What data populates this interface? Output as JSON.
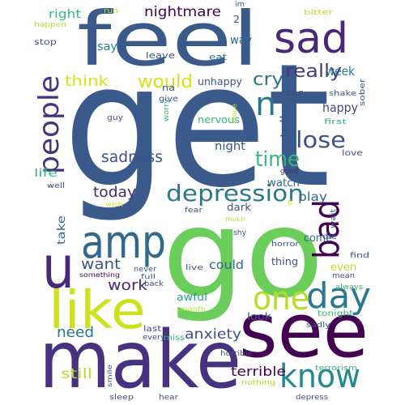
{
  "word_cloud": {
    "colors": {
      "dark_purple": "#440154",
      "indigo": "#482878",
      "blue_purple": "#3e4989",
      "slate_blue": "#31688e",
      "teal_blue": "#26828e",
      "teal": "#1f9e89",
      "green": "#35b779",
      "light_green": "#6ece58",
      "lime": "#b5de2b",
      "yellow": "#fde725"
    },
    "words": [
      {
        "text": "get",
        "color": "#3b5a8c"
      },
      {
        "text": "go",
        "color": "#6bcd5a"
      },
      {
        "text": "feel",
        "color": "#3b5a8c"
      },
      {
        "text": "make",
        "color": "#46327e"
      },
      {
        "text": "see",
        "color": "#440154"
      },
      {
        "text": "like",
        "color": "#cde11d"
      },
      {
        "text": "amp",
        "color": "#31688e"
      },
      {
        "text": "u",
        "color": "#482878"
      },
      {
        "text": "sad",
        "color": "#482878"
      },
      {
        "text": "day",
        "color": "#2a788e"
      },
      {
        "text": "know",
        "color": "#23898e"
      },
      {
        "text": "one",
        "color": "#b5de2b"
      },
      {
        "text": "bad",
        "color": "#440154"
      },
      {
        "text": "n",
        "color": "#2a788e"
      },
      {
        "text": "people",
        "color": "#46327e"
      },
      {
        "text": "depression",
        "color": "#2a788e"
      },
      {
        "text": "lose",
        "color": "#3b528b"
      },
      {
        "text": "time",
        "color": "#35b779"
      },
      {
        "text": "really",
        "color": "#453781"
      },
      {
        "text": "cry",
        "color": "#2a788e"
      },
      {
        "text": "would",
        "color": "#d8e219"
      },
      {
        "text": "nightmare",
        "color": "#440154"
      },
      {
        "text": "think",
        "color": "#d8e219"
      },
      {
        "text": "sadness",
        "color": "#3b528b"
      },
      {
        "text": "today",
        "color": "#482878"
      },
      {
        "text": "want",
        "color": "#3b528b"
      },
      {
        "text": "work",
        "color": "#482878"
      },
      {
        "text": "need",
        "color": "#2a788e"
      },
      {
        "text": "anxiety",
        "color": "#3b528b"
      },
      {
        "text": "terrible",
        "color": "#440154"
      },
      {
        "text": "still",
        "color": "#b5de2b"
      },
      {
        "text": "could",
        "color": "#31688e"
      },
      {
        "text": "play",
        "color": "#31688e"
      },
      {
        "text": "week",
        "color": "#2a788e"
      },
      {
        "text": "happy",
        "color": "#3e4989"
      },
      {
        "text": "right",
        "color": "#35b779"
      },
      {
        "text": "say",
        "color": "#26828e"
      },
      {
        "text": "way",
        "color": "#31688e"
      },
      {
        "text": "life",
        "color": "#35b779"
      },
      {
        "text": "night",
        "color": "#3b528b"
      },
      {
        "text": "watch",
        "color": "#31688e"
      },
      {
        "text": "take",
        "color": "#31688e"
      },
      {
        "text": "come",
        "color": "#31688e"
      },
      {
        "text": "even",
        "color": "#b5de2b"
      },
      {
        "text": "thing",
        "color": "#3b528b"
      },
      {
        "text": "dark",
        "color": "#3b528b"
      },
      {
        "text": "awful",
        "color": "#1f9e89"
      },
      {
        "text": "look",
        "color": "#3b528b"
      },
      {
        "text": "unhappy",
        "color": "#3b528b"
      },
      {
        "text": "nervous",
        "color": "#35b779"
      },
      {
        "text": "tell",
        "color": "#3b528b"
      },
      {
        "text": "leave",
        "color": "#3b528b"
      },
      {
        "text": "eat",
        "color": "#31688e"
      },
      {
        "text": "car",
        "color": "#3e4989"
      },
      {
        "text": "na",
        "color": "#3b528b"
      },
      {
        "text": "give",
        "color": "#3b528b"
      },
      {
        "text": "2",
        "color": "#3b528b"
      },
      {
        "text": "im",
        "color": "#3b528b"
      },
      {
        "text": "run",
        "color": "#b5de2b"
      },
      {
        "text": "bitter",
        "color": "#b5de2b"
      },
      {
        "text": "happen",
        "color": "#b5de2b"
      },
      {
        "text": "stop",
        "color": "#3b528b"
      },
      {
        "text": "shake",
        "color": "#3b528b"
      },
      {
        "text": "sober",
        "color": "#3b528b"
      },
      {
        "text": "first",
        "color": "#35b779"
      },
      {
        "text": "love",
        "color": "#3b528b"
      },
      {
        "text": "good",
        "color": "#482878"
      },
      {
        "text": "guy",
        "color": "#3b528b"
      },
      {
        "text": "worry",
        "color": "#35b779"
      },
      {
        "text": "since",
        "color": "#b5de2b"
      },
      {
        "text": "well",
        "color": "#3b528b"
      },
      {
        "text": "wish",
        "color": "#d8e219"
      },
      {
        "text": "fear",
        "color": "#3b528b"
      },
      {
        "text": "6",
        "color": "#d8e219"
      },
      {
        "text": "much",
        "color": "#b5de2b"
      },
      {
        "text": "shy",
        "color": "#3b528b"
      },
      {
        "text": "wait",
        "color": "#3b528b"
      },
      {
        "text": "die",
        "color": "#3b528b"
      },
      {
        "text": "horror",
        "color": "#3b528b"
      },
      {
        "text": "find",
        "color": "#3b528b"
      },
      {
        "text": "mean",
        "color": "#3b528b"
      },
      {
        "text": "always",
        "color": "#35b779"
      },
      {
        "text": "never",
        "color": "#3b528b"
      },
      {
        "text": "live",
        "color": "#3b528b"
      },
      {
        "text": "full",
        "color": "#3b528b"
      },
      {
        "text": "something",
        "color": "#440154"
      },
      {
        "text": "back",
        "color": "#3b528b"
      },
      {
        "text": "month",
        "color": "#b5de2b"
      },
      {
        "text": "tonight",
        "color": "#35b779"
      },
      {
        "text": "sadly",
        "color": "#3b528b"
      },
      {
        "text": "last",
        "color": "#3b528b"
      },
      {
        "text": "every",
        "color": "#3b528b"
      },
      {
        "text": "miss",
        "color": "#35b779"
      },
      {
        "text": "horrible",
        "color": "#3b528b"
      },
      {
        "text": "terrorism",
        "color": "#35b779"
      },
      {
        "text": "smile",
        "color": "#3b528b"
      },
      {
        "text": "nothing",
        "color": "#b5de2b"
      },
      {
        "text": "sleep",
        "color": "#3b528b"
      },
      {
        "text": "hear",
        "color": "#3b528b"
      },
      {
        "text": "depress",
        "color": "#3b528b"
      }
    ]
  }
}
